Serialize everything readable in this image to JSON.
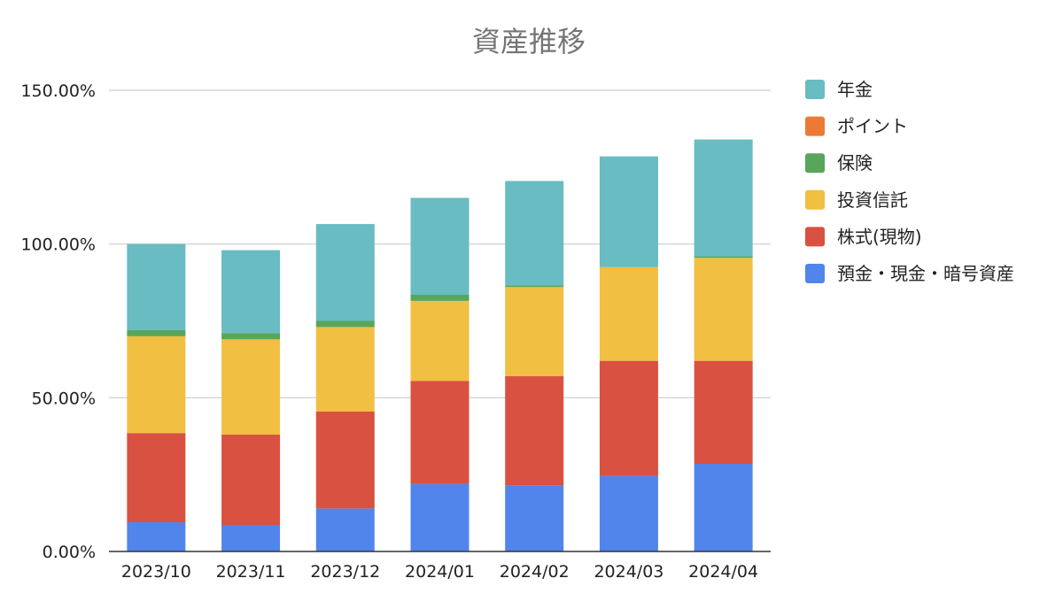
{
  "chart_data": {
    "type": "bar",
    "stacked": true,
    "title": "資産推移",
    "categories": [
      "2023/10",
      "2023/11",
      "2023/12",
      "2024/01",
      "2024/02",
      "2024/03",
      "2024/04"
    ],
    "yticks": [
      "0.00%",
      "50.00%",
      "100.00%",
      "150.00%"
    ],
    "ylim": [
      0,
      150
    ],
    "grid": true,
    "legend_position": "right",
    "series": [
      {
        "name": "預金・現金・暗号資産",
        "color": "#5185ec",
        "values": [
          9.5,
          8.5,
          14,
          22,
          21.5,
          24.5,
          28.5
        ]
      },
      {
        "name": "株式(現物)",
        "color": "#d95140",
        "values": [
          29,
          29.5,
          31.5,
          33.5,
          35.5,
          37.5,
          33.5
        ]
      },
      {
        "name": "投資信託",
        "color": "#f1bf42",
        "values": [
          31.5,
          31,
          27.5,
          26,
          29,
          30.5,
          33.5
        ]
      },
      {
        "name": "保険",
        "color": "#58a65c",
        "values": [
          2,
          2,
          2,
          2,
          0.5,
          0,
          0.5
        ]
      },
      {
        "name": "ポイント",
        "color": "#eb7a34",
        "values": [
          0,
          0,
          0,
          0,
          0,
          0,
          0
        ]
      },
      {
        "name": "年金",
        "color": "#68bcc2",
        "values": [
          28,
          27,
          31.5,
          31.5,
          34,
          36,
          38
        ]
      }
    ]
  }
}
